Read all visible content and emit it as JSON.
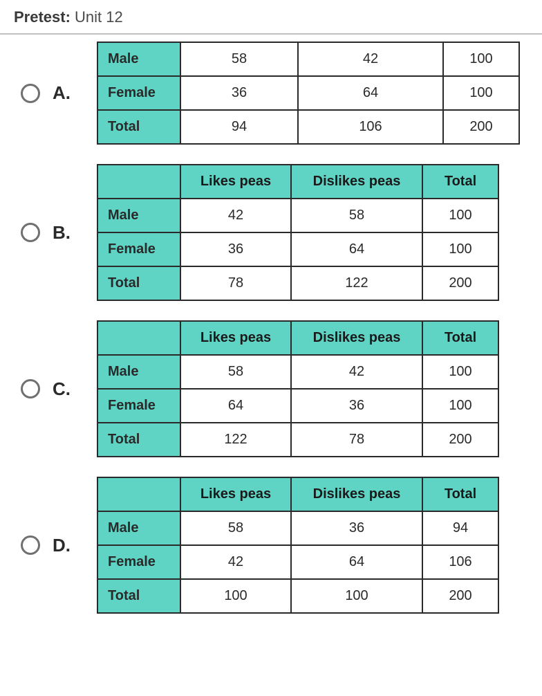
{
  "page": {
    "title_prefix": "Pretest:",
    "title_rest": "Unit 12"
  },
  "styling": {
    "header_cell_bg": "#5fd4c4",
    "cell_border": "#2a2a2a",
    "radio_border": "#707070",
    "page_bg": "#ffffff",
    "text_color": "#2a2a2a",
    "font_family": "Arial, sans-serif",
    "title_fontsize_pt": 17,
    "table_fontsize_pt": 15
  },
  "common": {
    "col_likes": "Likes peas",
    "col_dislikes": "Dislikes peas",
    "col_total": "Total",
    "row_male": "Male",
    "row_female": "Female",
    "row_total": "Total"
  },
  "options": {
    "A": {
      "letter": "A.",
      "has_header": false,
      "rows": [
        {
          "label": "Male",
          "v1": "58",
          "v2": "42",
          "v3": "100"
        },
        {
          "label": "Female",
          "v1": "36",
          "v2": "64",
          "v3": "100"
        },
        {
          "label": "Total",
          "v1": "94",
          "v2": "106",
          "v3": "200"
        }
      ]
    },
    "B": {
      "letter": "B.",
      "has_header": true,
      "rows": [
        {
          "label": "Male",
          "v1": "42",
          "v2": "58",
          "v3": "100"
        },
        {
          "label": "Female",
          "v1": "36",
          "v2": "64",
          "v3": "100"
        },
        {
          "label": "Total",
          "v1": "78",
          "v2": "122",
          "v3": "200"
        }
      ]
    },
    "C": {
      "letter": "C.",
      "has_header": true,
      "rows": [
        {
          "label": "Male",
          "v1": "58",
          "v2": "42",
          "v3": "100"
        },
        {
          "label": "Female",
          "v1": "64",
          "v2": "36",
          "v3": "100"
        },
        {
          "label": "Total",
          "v1": "122",
          "v2": "78",
          "v3": "200"
        }
      ]
    },
    "D": {
      "letter": "D.",
      "has_header": true,
      "rows": [
        {
          "label": "Male",
          "v1": "58",
          "v2": "36",
          "v3": "94"
        },
        {
          "label": "Female",
          "v1": "42",
          "v2": "64",
          "v3": "106"
        },
        {
          "label": "Total",
          "v1": "100",
          "v2": "100",
          "v3": "200"
        }
      ]
    }
  }
}
